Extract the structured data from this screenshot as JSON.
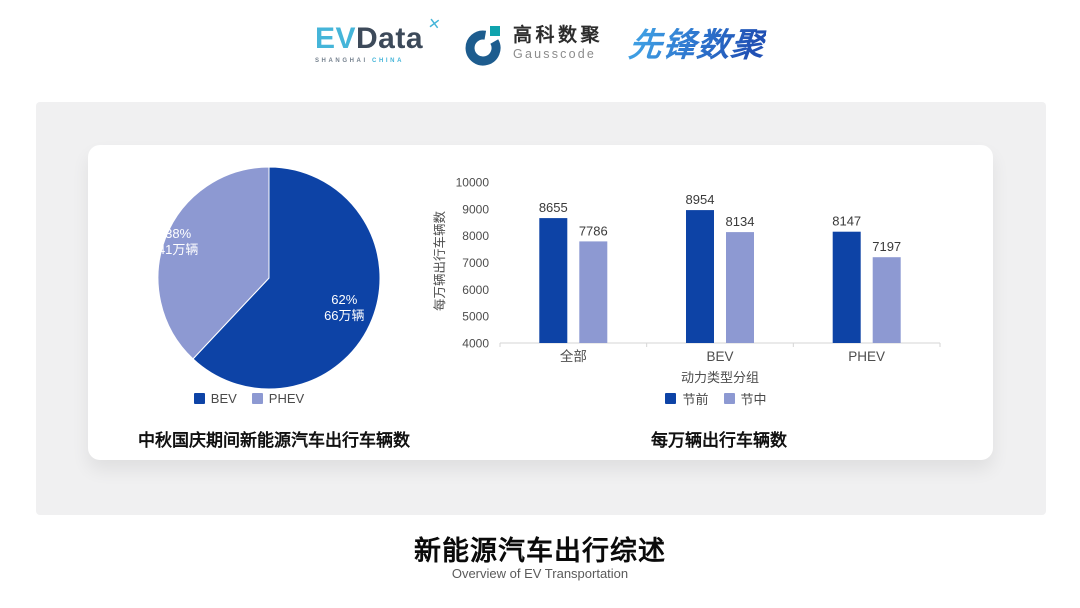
{
  "header": {
    "evdata": {
      "ev": "EV",
      "data": "Data",
      "sub_left": "SHANGHAI",
      "sub_right": "CHINA"
    },
    "gausscode": {
      "cn": "高科数聚",
      "en": "Gausscode"
    },
    "xianfeng": {
      "text": "先锋数聚"
    }
  },
  "footer": {
    "title": "新能源汽车出行综述",
    "subtitle": "Overview of EV Transportation"
  },
  "colors": {
    "primary_dark_blue": "#0d43a6",
    "light_periwinkle": "#8d99d2",
    "panel_gray": "#f0f0f1",
    "axis_line": "#d6d6d6",
    "axis_text": "#4d4d4d",
    "value_label": "#3a3a3a"
  },
  "chart_data": [
    {
      "type": "pie",
      "title": "中秋国庆期间新能源汽车出行车辆数",
      "slices": [
        {
          "name": "BEV",
          "percent": 62,
          "percent_label": "62%",
          "value_label": "66万辆",
          "color": "#0d43a6"
        },
        {
          "name": "PHEV",
          "percent": 38,
          "percent_label": "38%",
          "value_label": "41万辆",
          "color": "#8d99d2"
        }
      ],
      "legend": [
        "BEV",
        "PHEV"
      ],
      "legend_position": "bottom",
      "start_angle_deg": 0
    },
    {
      "type": "bar",
      "title": "每万辆出行车辆数",
      "categories": [
        "全部",
        "BEV",
        "PHEV"
      ],
      "series": [
        {
          "name": "节前",
          "color": "#0d43a6",
          "values": [
            8655,
            8954,
            8147
          ]
        },
        {
          "name": "节中",
          "color": "#8d99d2",
          "values": [
            7786,
            8134,
            7197
          ]
        }
      ],
      "xlabel": "动力类型分组",
      "ylabel": "每万辆出行车辆数",
      "ylim": [
        4000,
        10000
      ],
      "ytick_step": 1000,
      "grid": false,
      "legend_position": "bottom",
      "data_labels": true
    }
  ]
}
